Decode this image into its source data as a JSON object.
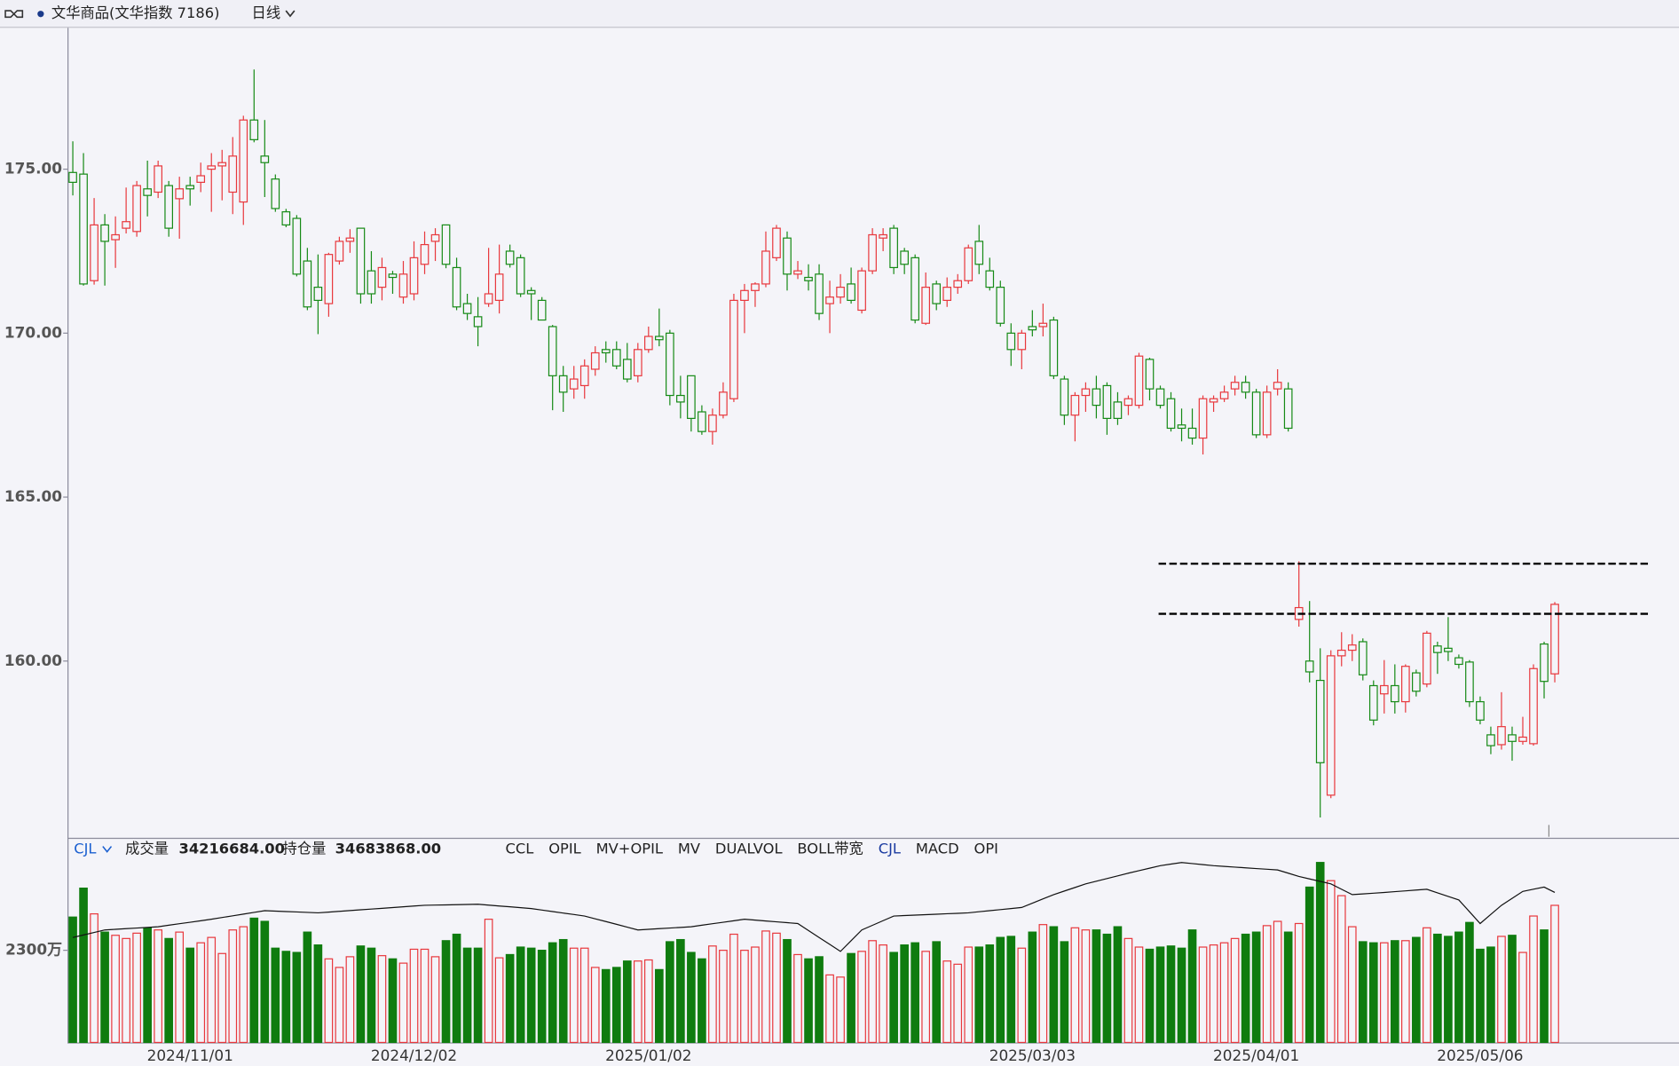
{
  "toolbar": {
    "instrument": "文华商品(文华指数 7186)",
    "period": "日线"
  },
  "chart_data": [
    {
      "type": "candlestick",
      "ylim": [
        154.61,
        179.31
      ],
      "yticks": [
        {
          "value": 160,
          "label": "160.00"
        },
        {
          "value": 165,
          "label": "165.00"
        },
        {
          "value": 170,
          "label": "170.00"
        },
        {
          "value": 175,
          "label": "175.00"
        }
      ],
      "grid": false,
      "up_color": "#e8383d",
      "down_color": "#168a16",
      "hlines": [
        162.97,
        161.44
      ],
      "open": [
        174.9,
        174.85,
        171.6,
        173.3,
        172.85,
        173.2,
        173.1,
        174.4,
        174.3,
        174.5,
        174.1,
        174.5,
        174.6,
        175.0,
        175.1,
        174.3,
        174.0,
        176.5,
        175.4,
        174.7,
        173.7,
        173.5,
        172.2,
        171.4,
        170.9,
        172.2,
        172.8,
        173.2,
        171.9,
        171.4,
        171.8,
        171.1,
        171.2,
        172.1,
        172.8,
        173.3,
        172.0,
        170.9,
        170.5,
        170.9,
        171.0,
        172.5,
        172.3,
        171.3,
        171.0,
        170.2,
        168.7,
        168.3,
        168.4,
        168.9,
        169.5,
        169.5,
        169.2,
        168.7,
        169.5,
        169.9,
        170.0,
        168.1,
        168.7,
        167.6,
        167.0,
        167.5,
        168.0,
        171.0,
        171.3,
        171.5,
        172.3,
        172.9,
        171.8,
        171.7,
        171.8,
        170.9,
        171.1,
        171.5,
        170.7,
        171.9,
        172.9,
        173.2,
        172.5,
        172.3,
        170.3,
        171.5,
        171.0,
        171.4,
        171.6,
        172.8,
        171.9,
        171.4,
        170.0,
        169.5,
        170.2,
        170.2,
        170.4,
        168.6,
        167.5,
        168.1,
        168.3,
        168.4,
        167.9,
        167.8,
        167.8,
        169.2,
        168.3,
        168.0,
        167.2,
        167.1,
        166.8,
        167.9,
        168.0,
        168.3,
        168.5,
        168.2,
        166.9,
        168.3,
        168.3,
        161.27,
        160.0,
        159.41,
        155.91,
        160.16,
        160.33,
        160.59,
        159.25,
        159.0,
        159.25,
        158.76,
        159.64,
        159.3,
        160.46,
        160.39,
        160.1,
        159.97,
        158.76,
        157.75,
        157.45,
        157.75,
        157.55,
        157.48,
        160.52,
        159.61
      ],
      "high": [
        175.85,
        175.49,
        174.12,
        173.63,
        173.56,
        174.44,
        174.64,
        175.26,
        175.26,
        174.64,
        174.77,
        174.77,
        175.2,
        175.49,
        175.59,
        175.98,
        176.63,
        178.04,
        176.5,
        174.84,
        173.79,
        173.6,
        172.6,
        172.4,
        172.45,
        172.94,
        173.17,
        173.2,
        172.5,
        172.3,
        171.9,
        172.2,
        172.8,
        173.1,
        173.2,
        173.3,
        172.3,
        171.2,
        171.1,
        172.6,
        172.7,
        172.7,
        172.4,
        171.4,
        171.1,
        170.25,
        169.0,
        169.0,
        169.2,
        169.6,
        169.75,
        169.75,
        169.7,
        169.7,
        170.2,
        170.75,
        170.1,
        168.7,
        168.7,
        167.8,
        167.7,
        168.5,
        171.2,
        171.5,
        171.55,
        173.1,
        173.3,
        173.1,
        172.2,
        172.1,
        172.1,
        171.6,
        171.8,
        172.0,
        172.0,
        173.2,
        173.2,
        173.3,
        172.6,
        172.4,
        171.85,
        171.6,
        171.7,
        171.8,
        172.7,
        173.3,
        172.3,
        171.6,
        170.3,
        170.1,
        170.7,
        170.9,
        170.5,
        168.7,
        168.2,
        168.5,
        168.7,
        168.5,
        168.2,
        168.1,
        169.4,
        169.25,
        168.4,
        168.2,
        167.7,
        167.7,
        168.1,
        168.1,
        168.4,
        168.7,
        168.7,
        168.3,
        168.4,
        168.9,
        168.5,
        163.04,
        161.83,
        160.39,
        160.33,
        160.88,
        160.82,
        160.69,
        159.41,
        160.03,
        159.9,
        159.9,
        159.74,
        160.92,
        160.59,
        161.34,
        160.2,
        160.03,
        158.92,
        158.0,
        159.05,
        158.0,
        158.3,
        159.9,
        160.59,
        161.8
      ],
      "low": [
        174.2,
        171.45,
        171.48,
        171.45,
        171.99,
        173.04,
        172.94,
        173.56,
        174.12,
        172.94,
        172.88,
        173.89,
        174.3,
        173.7,
        174.05,
        173.63,
        173.3,
        175.82,
        174.15,
        173.7,
        173.23,
        171.73,
        170.7,
        169.97,
        170.5,
        172.09,
        172.45,
        170.9,
        170.9,
        171.0,
        171.2,
        170.9,
        171.0,
        171.8,
        172.2,
        171.98,
        170.7,
        170.4,
        169.6,
        170.8,
        170.6,
        172.0,
        171.1,
        170.4,
        170.4,
        167.65,
        167.6,
        168.0,
        168.0,
        168.7,
        169.1,
        168.9,
        168.5,
        168.5,
        169.4,
        169.6,
        167.8,
        167.4,
        167.0,
        166.9,
        166.6,
        167.4,
        167.9,
        170.0,
        170.8,
        171.4,
        172.2,
        171.3,
        171.65,
        171.3,
        170.4,
        170.0,
        170.9,
        170.9,
        170.6,
        171.8,
        172.5,
        171.8,
        171.8,
        170.3,
        170.25,
        170.7,
        170.8,
        171.2,
        171.5,
        171.8,
        171.3,
        170.2,
        169.0,
        168.9,
        169.9,
        169.9,
        168.6,
        167.2,
        166.7,
        167.6,
        167.4,
        166.9,
        167.2,
        167.5,
        167.7,
        167.95,
        167.7,
        167.0,
        166.7,
        166.6,
        166.3,
        167.6,
        167.9,
        168.1,
        168.0,
        166.8,
        166.8,
        168.1,
        167.0,
        161.05,
        159.35,
        155.23,
        155.82,
        159.84,
        160.0,
        159.41,
        158.04,
        158.4,
        158.4,
        158.43,
        158.92,
        159.2,
        159.61,
        160.0,
        159.77,
        158.6,
        158.07,
        157.16,
        157.3,
        156.96,
        157.45,
        157.42,
        158.86,
        159.35
      ],
      "close": [
        174.6,
        171.5,
        173.3,
        172.8,
        173.0,
        173.4,
        174.5,
        174.2,
        175.1,
        173.2,
        174.4,
        174.4,
        174.8,
        175.1,
        175.2,
        175.4,
        176.5,
        175.9,
        175.2,
        173.8,
        173.3,
        171.8,
        170.8,
        171.0,
        172.4,
        172.8,
        172.9,
        171.2,
        171.2,
        172.0,
        171.7,
        171.8,
        172.3,
        172.7,
        173.0,
        172.1,
        170.8,
        170.6,
        170.2,
        171.2,
        171.8,
        172.1,
        171.2,
        171.2,
        170.4,
        168.7,
        168.2,
        168.6,
        169.0,
        169.4,
        169.4,
        169.0,
        168.6,
        169.5,
        169.9,
        169.8,
        168.1,
        167.9,
        167.4,
        167.0,
        167.5,
        168.2,
        171.0,
        171.3,
        171.5,
        172.5,
        173.2,
        171.8,
        171.9,
        171.6,
        170.6,
        171.1,
        171.4,
        171.0,
        171.9,
        173.0,
        173.0,
        172.0,
        172.1,
        170.4,
        171.4,
        170.9,
        171.4,
        171.6,
        172.6,
        172.1,
        171.4,
        170.3,
        169.5,
        170.0,
        170.1,
        170.3,
        168.7,
        167.5,
        168.1,
        168.3,
        167.8,
        167.4,
        167.4,
        168.0,
        169.3,
        168.3,
        167.8,
        167.1,
        167.1,
        166.8,
        168.0,
        168.0,
        168.2,
        168.5,
        168.2,
        166.9,
        168.2,
        168.5,
        167.1,
        161.63,
        159.67,
        156.9,
        160.16,
        160.33,
        160.49,
        159.58,
        158.2,
        159.25,
        158.76,
        159.84,
        159.08,
        160.85,
        160.26,
        160.29,
        159.9,
        158.76,
        158.2,
        157.42,
        158.0,
        157.55,
        157.68,
        159.77,
        159.38,
        161.73
      ]
    },
    {
      "type": "bar",
      "indicator": "CJL",
      "tabs": [
        "CCL",
        "OPIL",
        "MV+OPIL",
        "MV",
        "DUALVOL",
        "BOLL带宽",
        "CJL",
        "MACD",
        "OPI"
      ],
      "active_tab": 6,
      "ylim": [
        0,
        4626
      ],
      "yticks": [
        {
          "value": 2300,
          "label": "2300万"
        }
      ],
      "y2lim": [
        0,
        4286
      ],
      "categories": [
        null,
        null,
        null,
        null,
        null,
        null,
        null,
        null,
        null,
        null,
        null,
        "2024/11/01",
        null,
        null,
        null,
        null,
        null,
        null,
        null,
        null,
        null,
        null,
        null,
        null,
        null,
        null,
        null,
        null,
        null,
        null,
        null,
        null,
        "2024/12/02",
        null,
        null,
        null,
        null,
        null,
        null,
        null,
        null,
        null,
        null,
        null,
        null,
        null,
        null,
        null,
        null,
        null,
        null,
        null,
        null,
        null,
        "2025/01/02",
        null,
        null,
        null,
        null,
        null,
        null,
        null,
        null,
        null,
        null,
        null,
        null,
        null,
        null,
        null,
        null,
        null,
        null,
        null,
        null,
        null,
        null,
        null,
        null,
        null,
        null,
        null,
        null,
        null,
        null,
        null,
        null,
        null,
        null,
        null,
        "2025/03/03",
        null,
        null,
        null,
        null,
        null,
        null,
        null,
        null,
        null,
        null,
        null,
        null,
        null,
        null,
        null,
        null,
        null,
        null,
        null,
        null,
        "2025/04/01",
        null,
        null,
        null,
        null,
        null,
        null,
        null,
        null,
        null,
        null,
        null,
        null,
        null,
        null,
        null,
        null,
        null,
        null,
        null,
        null,
        "2025/05/06",
        null,
        null,
        null,
        null,
        null,
        null,
        null
      ],
      "series": [
        {
          "name": "成交量",
          "readout": "34216684.00",
          "up_color": "#e8383d",
          "down_color": "#0f7c0f",
          "values": [
            3129,
            3851,
            3209,
            2754,
            2674,
            2594,
            2727,
            2861,
            2808,
            2594,
            2754,
            2353,
            2487,
            2621,
            2219,
            2808,
            2888,
            3102,
            3022,
            2353,
            2273,
            2246,
            2754,
            2433,
            2086,
            1872,
            2139,
            2407,
            2353,
            2166,
            2086,
            1979,
            2326,
            2326,
            2139,
            2540,
            2701,
            2353,
            2353,
            3075,
            2112,
            2193,
            2380,
            2353,
            2300,
            2487,
            2567,
            2353,
            2353,
            1872,
            1818,
            1872,
            2032,
            2032,
            2059,
            1818,
            2514,
            2567,
            2246,
            2086,
            2407,
            2300,
            2701,
            2300,
            2380,
            2781,
            2727,
            2567,
            2193,
            2086,
            2139,
            1685,
            1631,
            2219,
            2273,
            2540,
            2433,
            2246,
            2433,
            2487,
            2273,
            2514,
            2032,
            1952,
            2380,
            2380,
            2433,
            2621,
            2647,
            2353,
            2754,
            2941,
            2888,
            2514,
            2861,
            2808,
            2808,
            2701,
            2888,
            2594,
            2380,
            2326,
            2380,
            2407,
            2353,
            2808,
            2380,
            2433,
            2487,
            2594,
            2701,
            2754,
            2915,
            3022,
            2754,
            2968,
            3877,
            4492,
            4038,
            3663,
            2888,
            2514,
            2487,
            2487,
            2540,
            2540,
            2621,
            2861,
            2701,
            2647,
            2754,
            2995,
            2326,
            2380,
            2647,
            2674,
            2246,
            3155,
            2808,
            3421.6684
          ]
        },
        {
          "name": "持仓量",
          "readout": "34683868.00",
          "type": "line",
          "axis": "y2",
          "color": "#111111",
          "values": [
            2427,
            2485,
            2543,
            2601,
            2616,
            2631,
            2645,
            2660,
            2675,
            2710,
            2745,
            2779,
            2814,
            2849,
            2889,
            2928,
            2968,
            3007,
            3047,
            3037,
            3027,
            3017,
            3007,
            2997,
            3014,
            3032,
            3049,
            3067,
            3084,
            3101,
            3119,
            3136,
            3154,
            3171,
            3176,
            3181,
            3185,
            3190,
            3195,
            3175,
            3155,
            3136,
            3116,
            3096,
            3061,
            3027,
            2992,
            2958,
            2923,
            2859,
            2795,
            2731,
            2666,
            2601,
            2616,
            2631,
            2645,
            2660,
            2675,
            2710,
            2745,
            2779,
            2814,
            2849,
            2829,
            2809,
            2789,
            2769,
            2749,
            2588,
            2427,
            2266,
            2105,
            2353,
            2601,
            2708,
            2816,
            2923,
            2934,
            2944,
            2955,
            2965,
            2976,
            2986,
            2997,
            3022,
            3047,
            3071,
            3096,
            3121,
            3220,
            3319,
            3418,
            3501,
            3583,
            3666,
            3728,
            3790,
            3852,
            3914,
            3972,
            4029,
            4087,
            4124,
            4161,
            4136,
            4112,
            4087,
            4071,
            4054,
            4038,
            4021,
            4005,
            3988,
            3914,
            3839,
            3781,
            3724,
            3666,
            3542,
            3418,
            3435,
            3451,
            3468,
            3487,
            3505,
            3524,
            3542,
            3459,
            3377,
            3294,
            3022,
            2749,
            2960,
            3171,
            3332,
            3493,
            3543,
            3592,
            3468.3868
          ]
        }
      ]
    }
  ]
}
